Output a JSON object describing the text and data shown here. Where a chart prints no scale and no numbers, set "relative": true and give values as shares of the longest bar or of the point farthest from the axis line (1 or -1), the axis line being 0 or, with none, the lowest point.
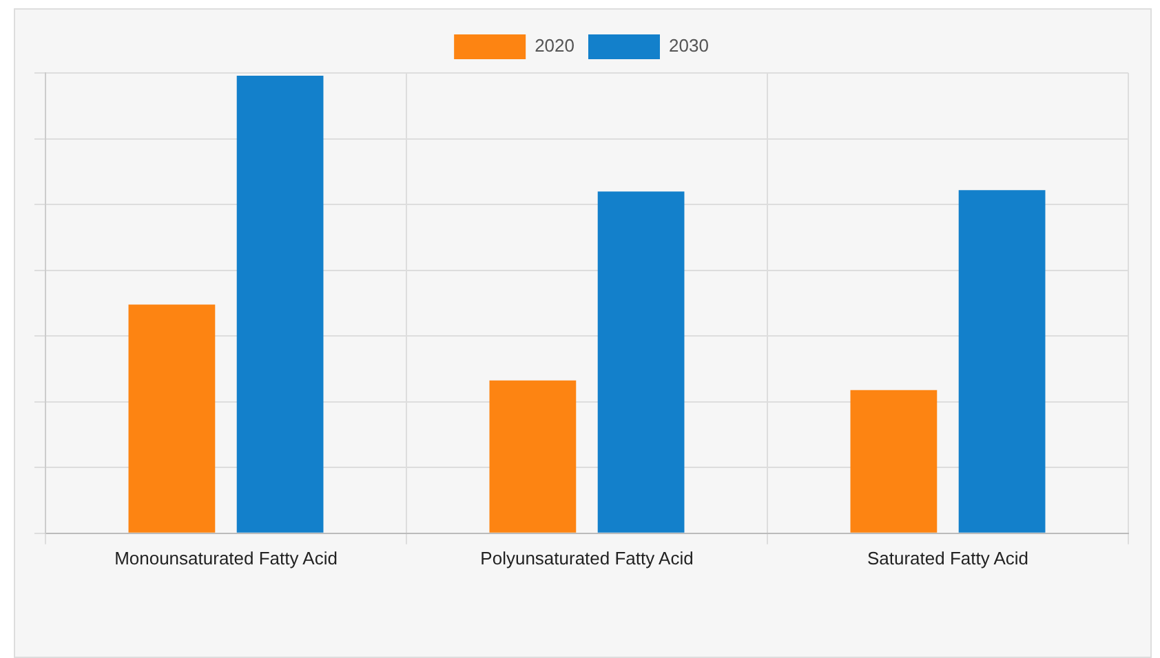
{
  "chart_data": {
    "type": "bar",
    "relative": true,
    "categories": [
      "Monounsaturated Fatty Acid",
      "Polyunsaturated Fatty Acid",
      "Saturated Fatty Acid"
    ],
    "series": [
      {
        "name": "2020",
        "color": "#fd8412",
        "values": [
          0.5,
          0.334,
          0.313
        ]
      },
      {
        "name": "2030",
        "color": "#1380cb",
        "values": [
          1,
          0.747,
          0.75
        ]
      }
    ],
    "grid": true,
    "legend": "top"
  }
}
